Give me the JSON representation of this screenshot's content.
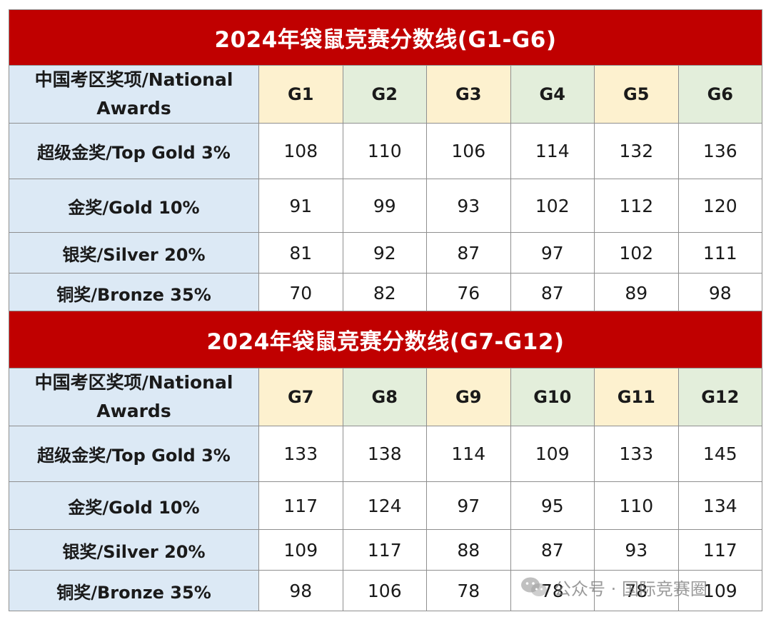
{
  "tables": [
    {
      "title": "2024年袋鼠竞赛分数线(G1-G6)",
      "header_label": "中国考区奖项/National Awards",
      "grades": [
        "G1",
        "G2",
        "G3",
        "G4",
        "G5",
        "G6"
      ],
      "rows": [
        {
          "label": "超级金奖/Top Gold 3%",
          "values": [
            "108",
            "110",
            "106",
            "114",
            "132",
            "136"
          ]
        },
        {
          "label": "金奖/Gold 10%",
          "values": [
            "91",
            "99",
            "93",
            "102",
            "112",
            "120"
          ]
        },
        {
          "label": "银奖/Silver 20%",
          "values": [
            "81",
            "92",
            "87",
            "97",
            "102",
            "111"
          ]
        },
        {
          "label": "铜奖/Bronze 35%",
          "values": [
            "70",
            "82",
            "76",
            "87",
            "89",
            "98"
          ]
        }
      ]
    },
    {
      "title": "2024年袋鼠竞赛分数线(G7-G12)",
      "header_label": "中国考区奖项/National Awards",
      "grades": [
        "G7",
        "G8",
        "G9",
        "G10",
        "G11",
        "G12"
      ],
      "rows": [
        {
          "label": "超级金奖/Top Gold 3%",
          "values": [
            "133",
            "138",
            "114",
            "109",
            "133",
            "145"
          ]
        },
        {
          "label": "金奖/Gold 10%",
          "values": [
            "117",
            "124",
            "97",
            "95",
            "110",
            "134"
          ]
        },
        {
          "label": "银奖/Silver 20%",
          "values": [
            "109",
            "117",
            "88",
            "87",
            "93",
            "117"
          ]
        },
        {
          "label": "铜奖/Bronze 35%",
          "values": [
            "98",
            "106",
            "78",
            "78",
            "78",
            "109"
          ]
        }
      ]
    }
  ],
  "watermark": {
    "icon": "wechat-icon",
    "text": "公众号 · 国际竞赛圈"
  },
  "colors": {
    "title_bg": "#c00000",
    "label_bg": "#dce9f5",
    "grade_odd_bg": "#fdf1cf",
    "grade_even_bg": "#e3eedb"
  }
}
